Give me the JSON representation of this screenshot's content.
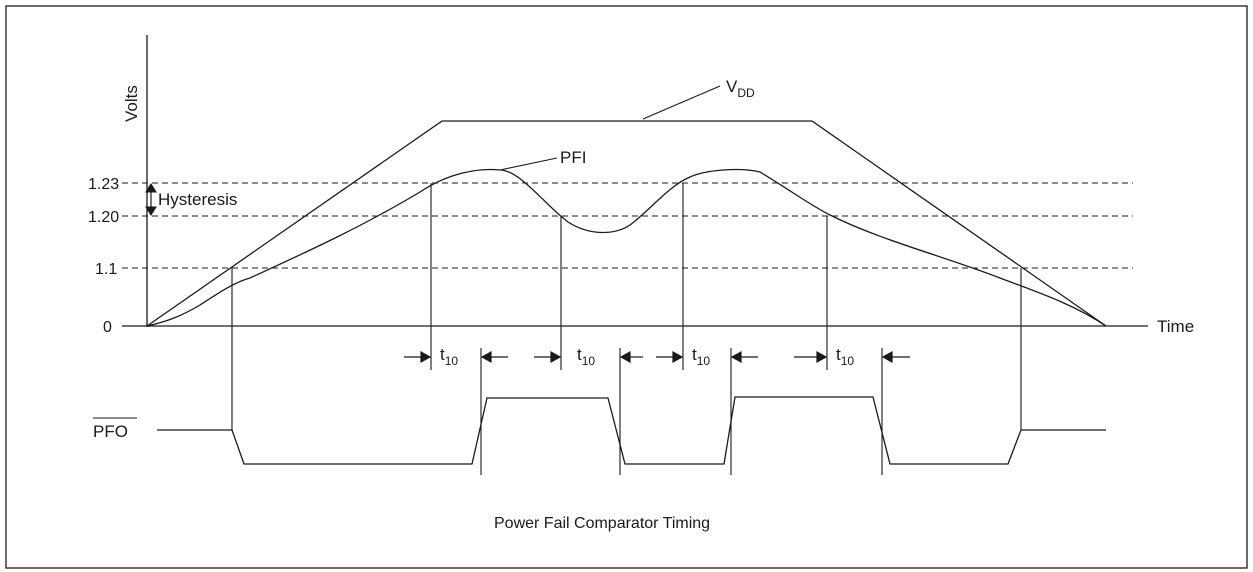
{
  "diagram": {
    "caption": "Power Fail Comparator Timing",
    "y_axis_label": "Volts",
    "x_axis_label": "Time",
    "y_ticks": [
      "1.23",
      "1.20",
      "1.1",
      "0"
    ],
    "hysteresis_label": "Hysteresis",
    "vdd_label": {
      "main": "V",
      "sub": "DD"
    },
    "pfi_label": "PFI",
    "pfo_label": "PFO",
    "delay_label": {
      "main": "t",
      "sub": "10"
    },
    "colors": {
      "line": "#1a1a1a",
      "border": "#1a1a1a",
      "background": "#ffffff"
    }
  }
}
